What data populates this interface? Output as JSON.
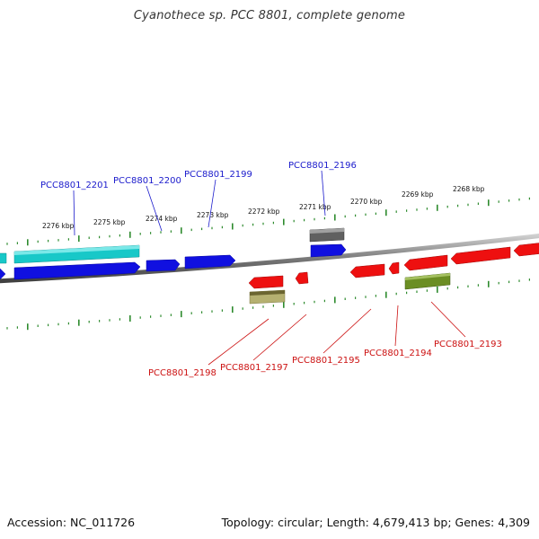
{
  "title": "Cyanothece sp. PCC 8801, complete genome",
  "footer": {
    "accession": "Accession: NC_011726",
    "summary": "Topology: circular; Length: 4,679,413 bp; Genes: 4,309"
  },
  "scale_labels": [
    "2276 kbp",
    "2275 kbp",
    "2274 kbp",
    "2273 kbp",
    "2272 kbp",
    "2271 kbp",
    "2270 kbp",
    "2269 kbp",
    "2268 kbp"
  ],
  "top_gene_labels": [
    "PCC8801_2201",
    "PCC8801_2200",
    "PCC8801_2199",
    "PCC8801_2196"
  ],
  "bottom_gene_labels": [
    "PCC8801_2198",
    "PCC8801_2197",
    "PCC8801_2195",
    "PCC8801_2194",
    "PCC8801_2193"
  ],
  "colors": {
    "top_label": "#1a1acc",
    "bottom_label": "#cc1111",
    "tick": "#2e8b2e",
    "backbone": "#808080",
    "forward_gene": "#1010e0",
    "reverse_gene": "#ee1010",
    "cyan_feature": "#18c8c8",
    "gray_feature": "#606060",
    "olive_feature": "#6b8e23",
    "khaki_feature": "#b5b070"
  }
}
